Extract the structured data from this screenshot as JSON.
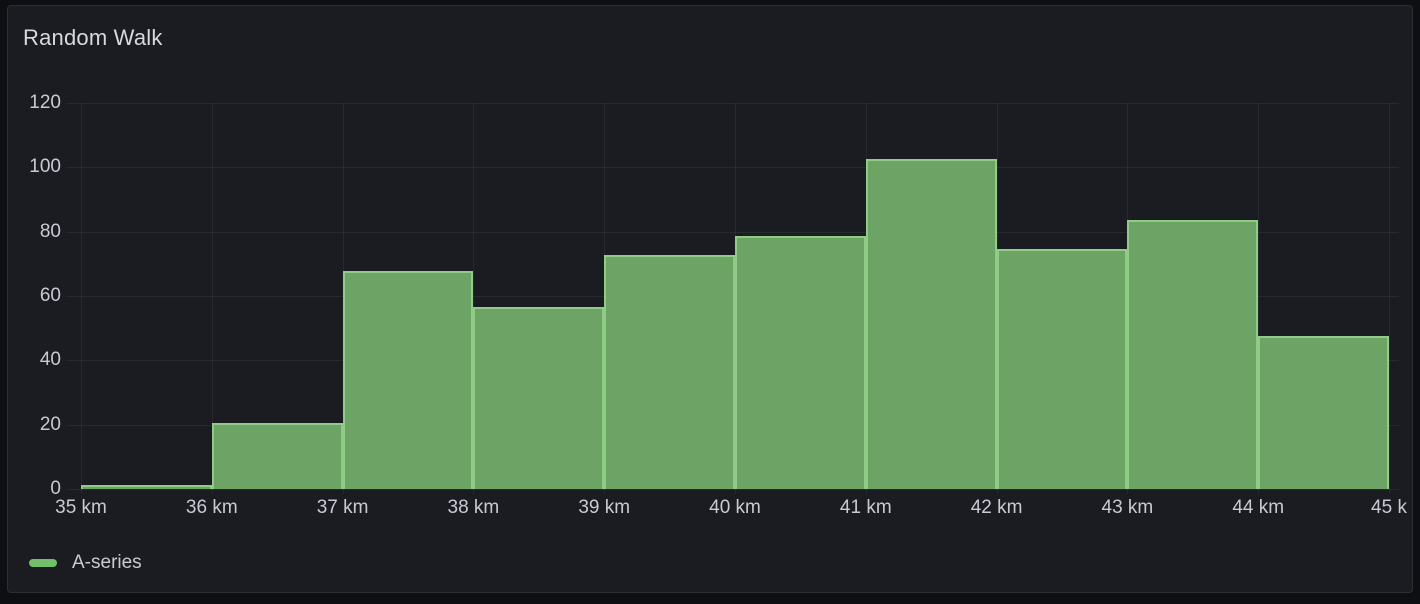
{
  "panel": {
    "title": "Random Walk"
  },
  "legend": {
    "series_label": "A-series"
  },
  "chart_data": {
    "type": "bar",
    "subtype": "histogram",
    "title": "Random Walk",
    "xlabel": "",
    "ylabel": "",
    "x_unit": "km",
    "bin_edges": [
      35,
      36,
      37,
      38,
      39,
      40,
      41,
      42,
      43,
      44,
      45
    ],
    "x_tick_labels": [
      "35 km",
      "36 km",
      "37 km",
      "38 km",
      "39 km",
      "40 km",
      "41 km",
      "42 km",
      "43 km",
      "44 km",
      "45 k"
    ],
    "y_ticks": [
      0,
      20,
      40,
      60,
      80,
      100,
      120
    ],
    "ylim": [
      0,
      120
    ],
    "grid": true,
    "legend_position": "bottom-left",
    "series": [
      {
        "name": "A-series",
        "color": "#73bf69",
        "values": [
          0.5,
          20,
          67,
          56,
          72,
          78,
          102,
          74,
          83,
          47
        ]
      }
    ]
  },
  "colors": {
    "page_bg": "#0e0f13",
    "panel_bg": "#1a1c21",
    "panel_border": "#2b2e35",
    "title_text": "#d8d9dd",
    "text": "#c9cad4",
    "grid_line": "rgba(204,204,220,0.08)",
    "series_color": "#73bf69",
    "bar_fill": "#6da365",
    "bar_border": "#8fcc86"
  }
}
